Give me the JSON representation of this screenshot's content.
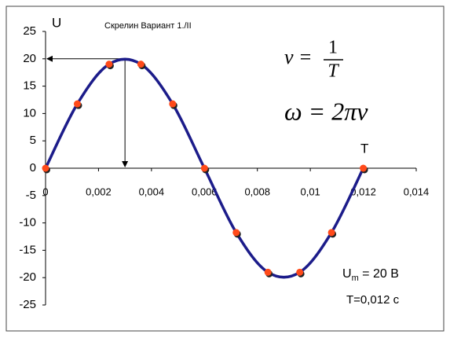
{
  "chart_data": {
    "type": "line",
    "title": "Скрелин  Вариант 1./II",
    "y_axis_label": "U",
    "period_label": "T",
    "formula_frequency": {
      "lhs": "ν =",
      "numerator": "1",
      "denominator": "T"
    },
    "formula_angular": "ω = 2πν",
    "amplitude_note": {
      "symbol": "U",
      "subscript": "m",
      "rest": " = 20 В"
    },
    "period_note": "T=0,012 с",
    "x": [
      0,
      0.0012,
      0.0024,
      0.0036,
      0.0048,
      0.006,
      0.0072,
      0.0084,
      0.0096,
      0.0108,
      0.012
    ],
    "series": [
      {
        "name": "U",
        "color": "#1c1c8a",
        "marker_color": "#ff4a1a",
        "values": [
          0,
          11.76,
          19.02,
          19.02,
          11.76,
          0,
          -11.76,
          -19.02,
          -19.02,
          -11.76,
          0
        ]
      }
    ],
    "annotation_point": {
      "x": 0.003,
      "y": 20
    },
    "xlim": [
      0,
      0.014
    ],
    "xticks": [
      0,
      {
        "value": 0.002,
        "label": "0,002"
      },
      {
        "value": 0.004,
        "label": "0,004"
      },
      {
        "value": 0.006,
        "label": "0,006"
      },
      {
        "value": 0.008,
        "label": "0,008"
      },
      {
        "value": 0.01,
        "label": "0,01"
      },
      {
        "value": 0.012,
        "label": "0,012"
      },
      {
        "value": 0.014,
        "label": "0,014"
      }
    ],
    "ylim": [
      -25,
      25
    ],
    "yticks": [
      -25,
      -20,
      -15,
      -10,
      -5,
      0,
      5,
      10,
      15,
      20,
      25
    ],
    "grid": false
  }
}
